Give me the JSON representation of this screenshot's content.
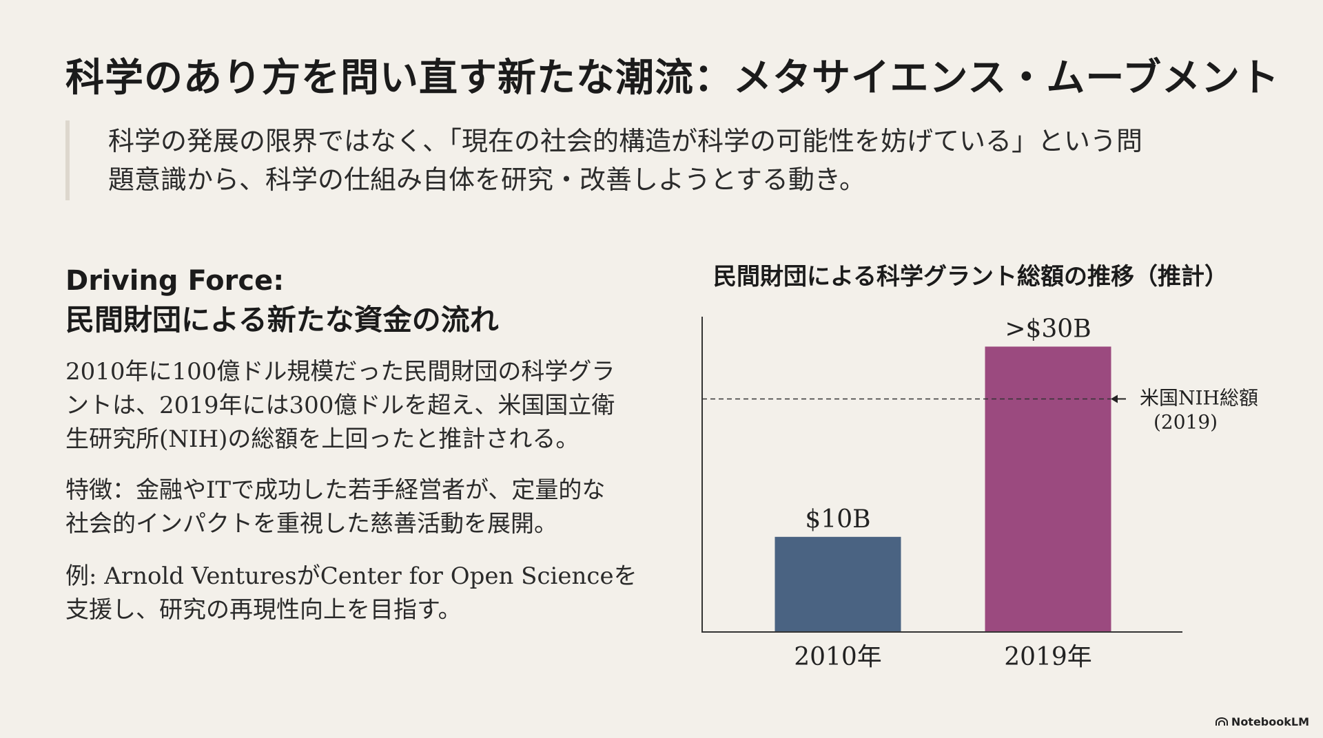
{
  "slide": {
    "title": "科学のあり方を問い直す新たな潮流：メタサイエンス・ムーブメント",
    "intro_line1": "科学の発展の限界ではなく、「現在の社会的構造が科学の可能性を妨げている」という問",
    "intro_line2": "題意識から、科学の仕組み自体を研究・改善しようとする動き。"
  },
  "left": {
    "heading_line1": "Driving Force:",
    "heading_line2": "民間財団による新たな資金の流れ",
    "p1_line1": "2010年に100億ドル規模だった民間財団の科学グラ",
    "p1_line2": "ントは、2019年には300億ドルを超え、米国国立衛",
    "p1_line3": "生研究所(NIH)の総額を上回ったと推計される。",
    "p2_line1": "特徴：金融やITで成功した若手経営者が、定量的な",
    "p2_line2": "社会的インパクトを重視した慈善活動を展開。",
    "p3_line1": "例: Arnold VenturesがCenter for Open Scienceを",
    "p3_line2": "支援し、研究の再現性向上を目指す。"
  },
  "chart_data": {
    "type": "bar",
    "title": "民間財団による科学グラント総額の推移（推計）",
    "categories": [
      "2010年",
      "2019年"
    ],
    "values": [
      10,
      30
    ],
    "value_labels": [
      "$10B",
      ">$30B"
    ],
    "units": "billion USD",
    "colors": [
      "#4a6382",
      "#9b4a7f"
    ],
    "ylim": [
      0,
      33
    ],
    "reference_line": {
      "value": 24.5,
      "label_line1": "米国NIH総額",
      "label_line2": "(2019)",
      "arrow": "←"
    },
    "grid": false,
    "xlabel": "",
    "ylabel": ""
  },
  "brand": {
    "name": "NotebookLM",
    "icon": "notebooklm-logo-icon"
  }
}
